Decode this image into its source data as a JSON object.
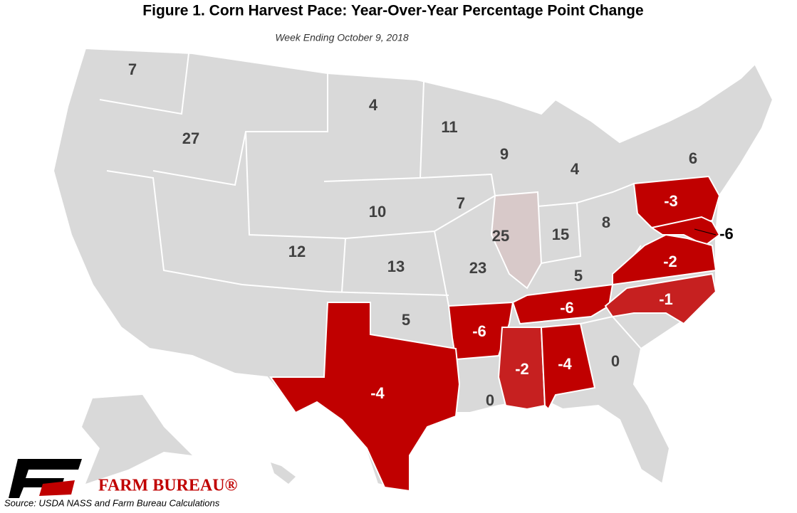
{
  "title": "Figure 1. Corn Harvest Pace: Year-Over-Year Percentage Point Change",
  "subtitle": "Week Ending October 9, 2018",
  "source": "Source: USDA NASS and Farm Bureau Calculations",
  "logo_text": "FARM BUREAU®",
  "states": [
    {
      "value": 7,
      "color": "#d9d9d9"
    },
    {
      "value": 27,
      "color": "#d9d9d9"
    },
    {
      "value": 4,
      "color": "#d9d9d9"
    },
    {
      "value": 11,
      "color": "#d9d9d9"
    },
    {
      "value": 9,
      "color": "#d9d9d9"
    },
    {
      "value": 4,
      "color": "#d9d9d9"
    },
    {
      "value": 6,
      "color": "#d9d9d9"
    },
    {
      "value": -3,
      "color": "#c00000"
    },
    {
      "value": 10,
      "color": "#d9d9d9"
    },
    {
      "value": 7,
      "color": "#d9d9d9"
    },
    {
      "value": 25,
      "color": "#d8c9c9"
    },
    {
      "value": 15,
      "color": "#d9d9d9"
    },
    {
      "value": 8,
      "color": "#d9d9d9"
    },
    {
      "value": -6,
      "color": "#c00000"
    },
    {
      "value": 12,
      "color": "#d9d9d9"
    },
    {
      "value": 13,
      "color": "#d9d9d9"
    },
    {
      "value": 23,
      "color": "#d9d9d9"
    },
    {
      "value": 5,
      "color": "#d9d9d9"
    },
    {
      "value": -2,
      "color": "#c00000"
    },
    {
      "value": -6,
      "color": "#c00000"
    },
    {
      "value": -1,
      "color": "#c62020"
    },
    {
      "value": 5,
      "color": "#d9d9d9"
    },
    {
      "value": -6,
      "color": "#c00000"
    },
    {
      "value": -4,
      "color": "#c00000"
    },
    {
      "value": -2,
      "color": "#c62020"
    },
    {
      "value": -4,
      "color": "#c00000"
    },
    {
      "value": 0,
      "color": "#d9d9d9"
    },
    {
      "value": 0,
      "color": "#d9d9d9"
    }
  ]
}
